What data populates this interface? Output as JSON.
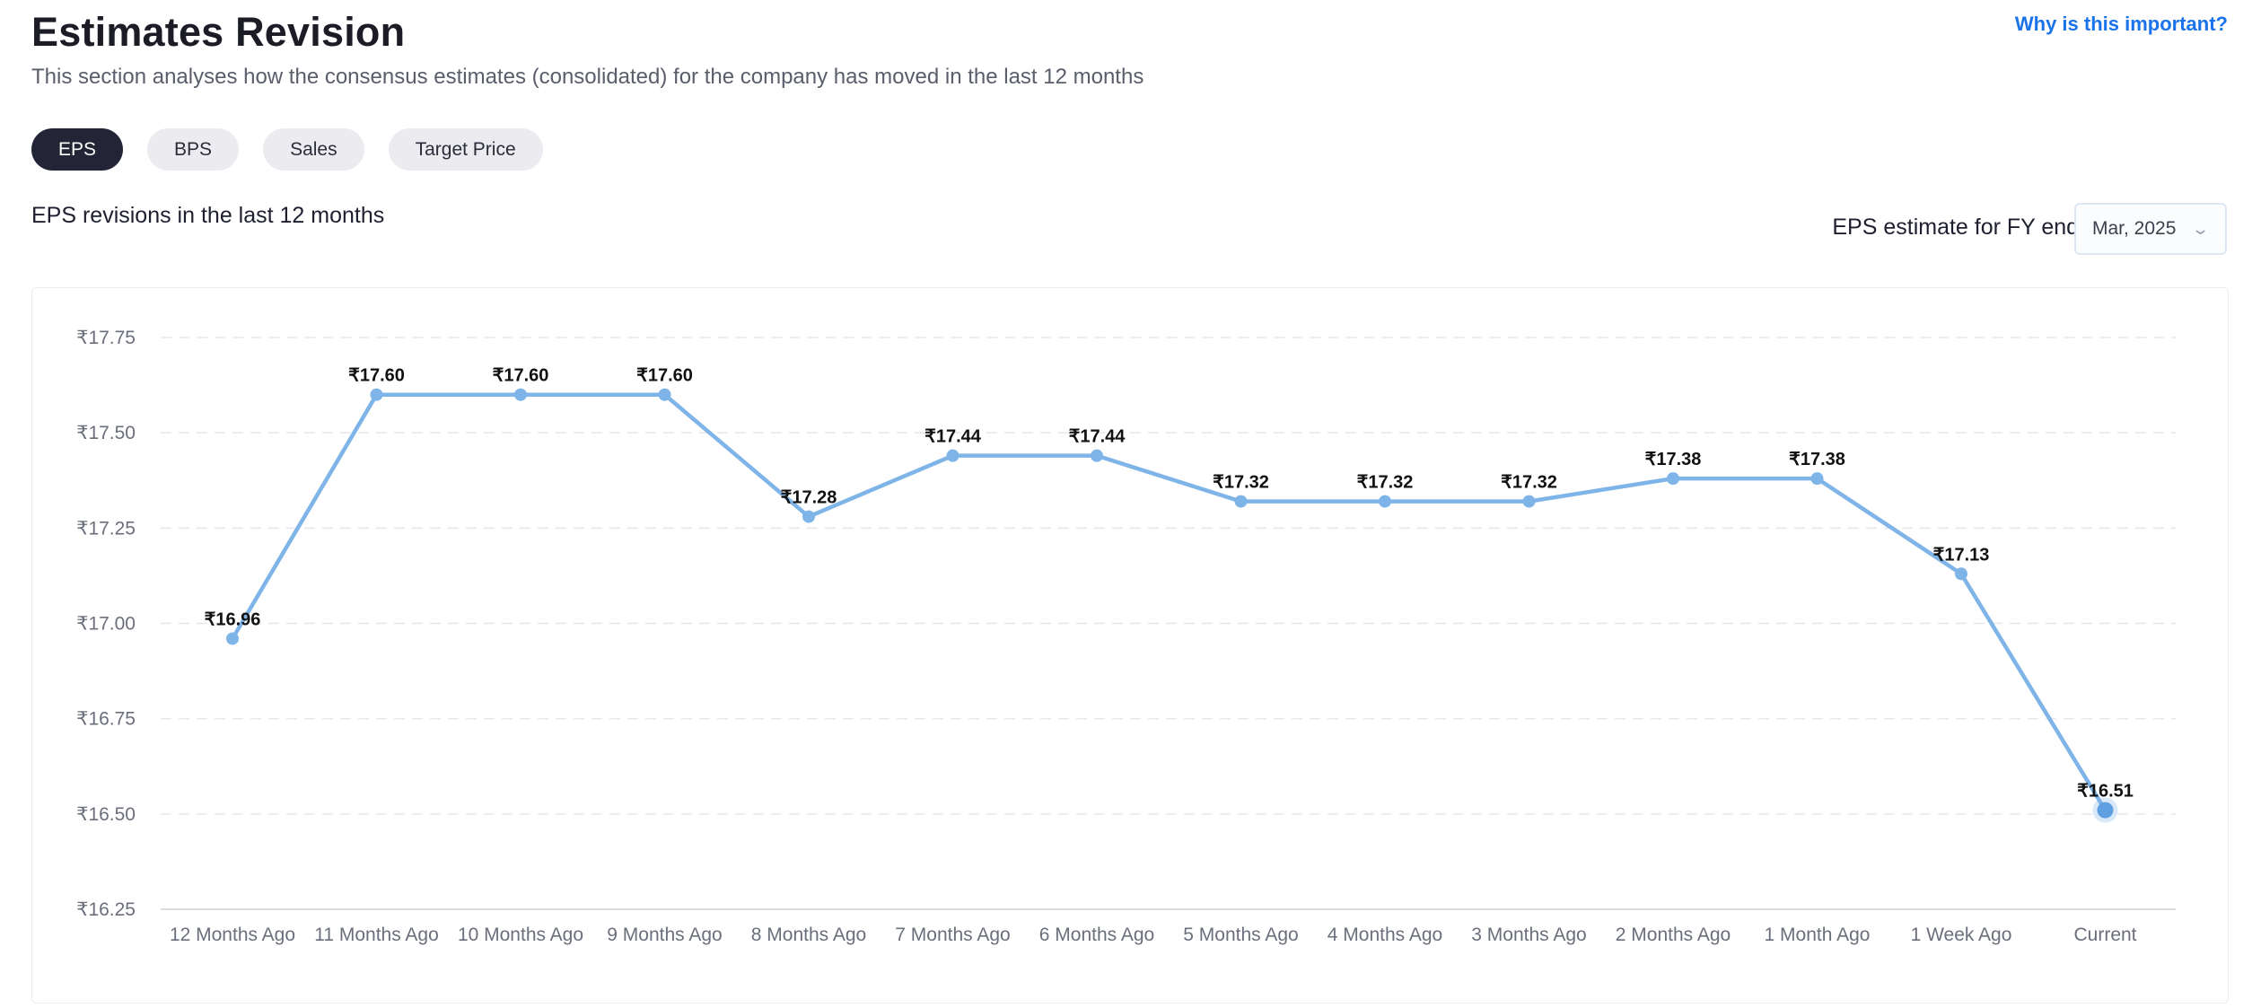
{
  "header": {
    "title": "Estimates Revision",
    "subtitle": "This section analyses how the consensus estimates (consolidated) for the company has moved in the last 12 months",
    "help_link": "Why is this important?"
  },
  "tabs": [
    {
      "label": "EPS",
      "active": true
    },
    {
      "label": "BPS",
      "active": false
    },
    {
      "label": "Sales",
      "active": false
    },
    {
      "label": "Target Price",
      "active": false
    }
  ],
  "chart_heading": "EPS revisions in the last 12 months",
  "fy_selector": {
    "label": "EPS estimate for FY end:",
    "value": "Mar, 2025",
    "icon": "chevron-down-icon"
  },
  "colors": {
    "line": "#7eb4e8",
    "active_tab": "#232536",
    "link": "#1a73e8"
  },
  "chart_data": {
    "type": "line",
    "title": "",
    "xlabel": "",
    "ylabel": "",
    "categories": [
      "12 Months Ago",
      "11 Months Ago",
      "10 Months Ago",
      "9 Months Ago",
      "8 Months Ago",
      "7 Months Ago",
      "6 Months Ago",
      "5 Months Ago",
      "4 Months Ago",
      "3 Months Ago",
      "2 Months Ago",
      "1 Month Ago",
      "1 Week Ago",
      "Current"
    ],
    "values": [
      16.96,
      17.6,
      17.6,
      17.6,
      17.28,
      17.44,
      17.44,
      17.32,
      17.32,
      17.32,
      17.38,
      17.38,
      17.13,
      16.51
    ],
    "data_labels": [
      "₹16.96",
      "₹17.60",
      "₹17.60",
      "₹17.60",
      "₹17.28",
      "₹17.44",
      "₹17.44",
      "₹17.32",
      "₹17.32",
      "₹17.32",
      "₹17.38",
      "₹17.38",
      "₹17.13",
      "₹16.51"
    ],
    "y_ticks": [
      17.75,
      17.5,
      17.25,
      17.0,
      16.75,
      16.5,
      16.25
    ],
    "y_tick_labels": [
      "₹17.75",
      "₹17.50",
      "₹17.25",
      "₹17.00",
      "₹16.75",
      "₹16.50",
      "₹16.25"
    ],
    "ylim": [
      16.25,
      17.75
    ],
    "grid": true,
    "highlighted_point": "Current"
  }
}
